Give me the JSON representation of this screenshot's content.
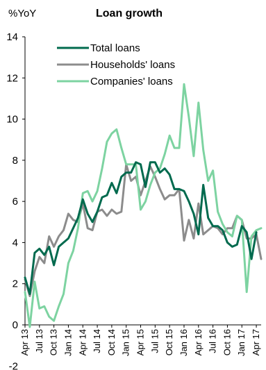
{
  "chart_data": {
    "type": "line",
    "title": "Loan growth",
    "ylabel": "%YoY",
    "xlabel": "",
    "ylim": [
      -2,
      14
    ],
    "yticks": [
      -2,
      0,
      2,
      4,
      6,
      8,
      10,
      12,
      14
    ],
    "grid": false,
    "legend_position": "top-left",
    "xlim": [
      "2013-04",
      "2017-05"
    ],
    "x_tick_labels": [
      "Apr 13",
      "Jul 13",
      "Oct 13",
      "Jan 14",
      "Apr 14",
      "Jul 14",
      "Oct 14",
      "Jan 15",
      "Apr 15",
      "Jul 15",
      "Oct 15",
      "Jan 16",
      "Apr 16",
      "Jul 16",
      "Oct 16",
      "Jan 17",
      "Apr 17"
    ],
    "x": [
      "2013-04",
      "2013-05",
      "2013-06",
      "2013-07",
      "2013-08",
      "2013-09",
      "2013-10",
      "2013-11",
      "2013-12",
      "2014-01",
      "2014-02",
      "2014-03",
      "2014-04",
      "2014-05",
      "2014-06",
      "2014-07",
      "2014-08",
      "2014-09",
      "2014-10",
      "2014-11",
      "2014-12",
      "2015-01",
      "2015-02",
      "2015-03",
      "2015-04",
      "2015-05",
      "2015-06",
      "2015-07",
      "2015-08",
      "2015-09",
      "2015-10",
      "2015-11",
      "2015-12",
      "2016-01",
      "2016-02",
      "2016-03",
      "2016-04",
      "2016-05",
      "2016-06",
      "2016-07",
      "2016-08",
      "2016-09",
      "2016-10",
      "2016-11",
      "2016-12",
      "2017-01",
      "2017-02",
      "2017-03",
      "2017-04",
      "2017-05"
    ],
    "series": [
      {
        "name": "Total loans",
        "color": "#006a4e",
        "width": 3,
        "values": [
          2.3,
          1.5,
          3.5,
          3.7,
          3.4,
          3.8,
          2.9,
          3.8,
          4.0,
          4.2,
          4.7,
          5.2,
          6.1,
          5.4,
          5.0,
          5.5,
          6.2,
          6.3,
          6.9,
          6.4,
          7.2,
          7.4,
          7.4,
          7.9,
          7.8,
          6.7,
          7.9,
          7.9,
          7.4,
          7.6,
          7.3,
          6.6,
          6.6,
          6.5,
          6.0,
          5.4,
          4.4,
          6.8,
          5.2,
          4.8,
          4.8,
          4.6,
          4.0,
          3.8,
          3.9,
          4.8,
          4.5,
          3.2,
          4.5,
          null
        ]
      },
      {
        "name": "Households' loans",
        "color": "#8c8c8c",
        "width": 3,
        "values": [
          2.2,
          1.4,
          2.6,
          3.3,
          3.0,
          4.3,
          3.8,
          4.3,
          4.6,
          5.4,
          5.1,
          5.0,
          5.9,
          4.7,
          4.6,
          5.5,
          5.6,
          5.3,
          5.6,
          5.4,
          5.5,
          7.8,
          7.0,
          7.2,
          6.3,
          7.0,
          7.7,
          7.2,
          6.6,
          6.1,
          6.3,
          6.3,
          6.6,
          4.1,
          5.1,
          4.2,
          5.9,
          4.4,
          4.6,
          4.8,
          4.7,
          4.4,
          4.7,
          4.7,
          5.3,
          5.1,
          4.2,
          4.2,
          4.4,
          3.2
        ]
      },
      {
        "name": "Companies' loans",
        "color": "#7dd3a1",
        "width": 3,
        "values": [
          1.6,
          -0.1,
          2.1,
          0.8,
          0.9,
          0.4,
          0.2,
          0.9,
          1.5,
          3.0,
          3.6,
          4.7,
          6.4,
          6.5,
          6.0,
          6.5,
          7.6,
          8.9,
          9.3,
          9.5,
          8.6,
          7.8,
          7.8,
          7.8,
          5.6,
          6.0,
          6.8,
          7.4,
          7.6,
          8.3,
          9.2,
          8.6,
          8.6,
          11.7,
          10.1,
          8.2,
          10.8,
          8.5,
          7.0,
          7.5,
          5.5,
          4.9,
          4.5,
          4.3,
          5.3,
          5.1,
          1.6,
          4.3,
          4.6,
          4.7
        ]
      }
    ]
  }
}
